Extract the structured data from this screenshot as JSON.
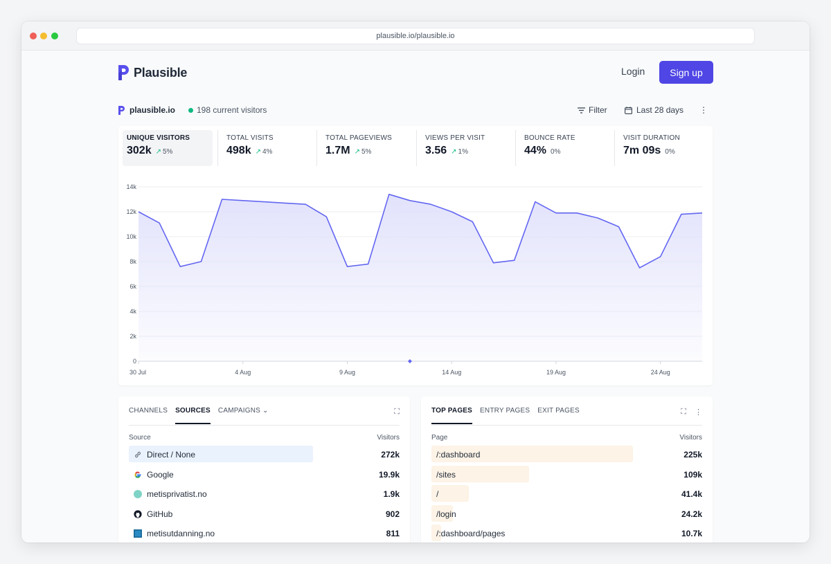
{
  "browser": {
    "url": "plausible.io/plausible.io"
  },
  "header": {
    "logo_text": "Plausible",
    "login": "Login",
    "signup": "Sign up"
  },
  "site": {
    "name": "plausible.io",
    "current_visitors": "198 current visitors",
    "filter": "Filter",
    "date_range": "Last 28 days"
  },
  "stats": [
    {
      "label": "UNIQUE VISITORS",
      "value": "302k",
      "change": "5%",
      "trend": "up",
      "active": true
    },
    {
      "label": "TOTAL VISITS",
      "value": "498k",
      "change": "4%",
      "trend": "up"
    },
    {
      "label": "TOTAL PAGEVIEWS",
      "value": "1.7M",
      "change": "5%",
      "trend": "up"
    },
    {
      "label": "VIEWS PER VISIT",
      "value": "3.56",
      "change": "1%",
      "trend": "up"
    },
    {
      "label": "BOUNCE RATE",
      "value": "44%",
      "change": "0%",
      "trend": "flat"
    },
    {
      "label": "VISIT DURATION",
      "value": "7m 09s",
      "change": "0%",
      "trend": "flat"
    }
  ],
  "chart_data": {
    "type": "area",
    "xlabel": "",
    "ylabel": "",
    "ylim": [
      0,
      14000
    ],
    "y_ticks": [
      "0",
      "2k",
      "4k",
      "6k",
      "8k",
      "10k",
      "12k",
      "14k"
    ],
    "x_ticks": [
      "30 Jul",
      "4 Aug",
      "9 Aug",
      "14 Aug",
      "19 Aug",
      "24 Aug"
    ],
    "grid": true,
    "color": "#6366f1",
    "fill_color": "#e0e1fb",
    "series": [
      {
        "x": [
          "30 Jul",
          "31 Jul",
          "1 Aug",
          "2 Aug",
          "3 Aug",
          "4 Aug",
          "5 Aug",
          "6 Aug",
          "7 Aug",
          "8 Aug",
          "9 Aug",
          "10 Aug",
          "11 Aug",
          "12 Aug",
          "13 Aug",
          "14 Aug",
          "15 Aug",
          "16 Aug",
          "17 Aug",
          "18 Aug",
          "19 Aug",
          "20 Aug",
          "21 Aug",
          "22 Aug",
          "23 Aug",
          "24 Aug",
          "25 Aug",
          "26 Aug"
        ],
        "values": [
          12000,
          11100,
          7600,
          8000,
          13000,
          12900,
          12800,
          12700,
          12600,
          11600,
          7600,
          7800,
          13400,
          12900,
          12600,
          12000,
          11200,
          7900,
          8100,
          12800,
          11900,
          11900,
          11500,
          10800,
          7500,
          8400,
          11800,
          11900
        ]
      }
    ],
    "marker_date": "12 Aug"
  },
  "sources_panel": {
    "tabs": [
      "CHANNELS",
      "SOURCES",
      "CAMPAIGNS"
    ],
    "active_tab": "SOURCES",
    "col_label": "Source",
    "col_value": "Visitors",
    "rows": [
      {
        "label": "Direct / None",
        "value": "272k",
        "share": 0.68,
        "icon": "link-icon"
      },
      {
        "label": "Google",
        "value": "19.9k",
        "share": 0,
        "icon": "google-icon"
      },
      {
        "label": "metisprivatist.no",
        "value": "1.9k",
        "share": 0,
        "icon": "favicon-circle"
      },
      {
        "label": "GitHub",
        "value": "902",
        "share": 0,
        "icon": "github-icon"
      },
      {
        "label": "metisutdanning.no",
        "value": "811",
        "share": 0,
        "icon": "favicon-square"
      }
    ]
  },
  "pages_panel": {
    "tabs": [
      "TOP PAGES",
      "ENTRY PAGES",
      "EXIT PAGES"
    ],
    "active_tab": "TOP PAGES",
    "col_label": "Page",
    "col_value": "Visitors",
    "rows": [
      {
        "label": "/:dashboard",
        "value": "225k",
        "share": 0.745
      },
      {
        "label": "/sites",
        "value": "109k",
        "share": 0.36
      },
      {
        "label": "/",
        "value": "41.4k",
        "share": 0.137
      },
      {
        "label": "/login",
        "value": "24.2k",
        "share": 0.08
      },
      {
        "label": "/:dashboard/pages",
        "value": "10.7k",
        "share": 0.035
      }
    ]
  }
}
